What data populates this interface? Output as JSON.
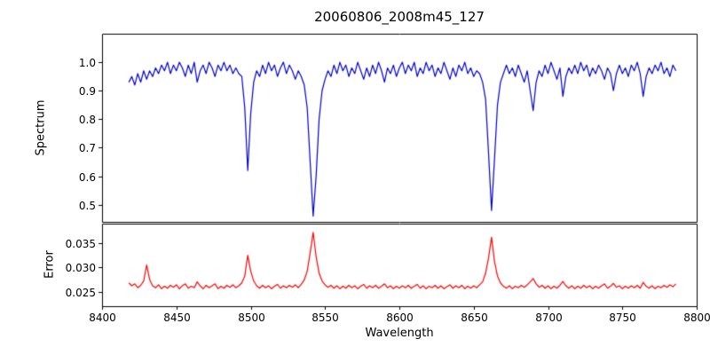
{
  "chart_data": [
    {
      "type": "line",
      "panel": "top",
      "title": "20060806_2008m45_127",
      "xlabel": "Wavelength",
      "ylabel": "Spectrum",
      "xlim": [
        8400,
        8800
      ],
      "ylim": [
        0.44,
        1.1
      ],
      "grid": false,
      "legend": "none",
      "line_color": "#0000cd",
      "x_ticks": [
        {
          "v": 8400,
          "label": "8400"
        },
        {
          "v": 8450,
          "label": "8450"
        },
        {
          "v": 8500,
          "label": "8500"
        },
        {
          "v": 8550,
          "label": "8550"
        },
        {
          "v": 8600,
          "label": "8600"
        },
        {
          "v": 8650,
          "label": "8650"
        },
        {
          "v": 8700,
          "label": "8700"
        },
        {
          "v": 8750,
          "label": "8750"
        },
        {
          "v": 8800,
          "label": "8800"
        }
      ],
      "y_ticks": [
        {
          "v": 0.5,
          "label": "0.5"
        },
        {
          "v": 0.6,
          "label": "0.6"
        },
        {
          "v": 0.7,
          "label": "0.7"
        },
        {
          "v": 0.8,
          "label": "0.8"
        },
        {
          "v": 0.9,
          "label": "0.9"
        },
        {
          "v": 1.0,
          "label": "1.0"
        }
      ],
      "x_start": 8418,
      "x_step": 2,
      "values": [
        0.93,
        0.95,
        0.92,
        0.96,
        0.93,
        0.97,
        0.94,
        0.97,
        0.95,
        0.98,
        0.96,
        0.99,
        0.97,
        1.0,
        0.96,
        0.99,
        0.97,
        1.0,
        0.98,
        0.95,
        0.99,
        0.96,
        1.0,
        0.93,
        0.97,
        0.99,
        0.96,
        1.0,
        0.98,
        0.95,
        0.99,
        0.97,
        1.0,
        0.97,
        0.99,
        0.96,
        0.98,
        0.96,
        0.95,
        0.84,
        0.62,
        0.82,
        0.93,
        0.97,
        0.95,
        0.99,
        0.96,
        1.0,
        0.97,
        0.99,
        0.95,
        0.98,
        1.0,
        0.96,
        0.99,
        0.97,
        0.94,
        0.97,
        0.95,
        0.92,
        0.84,
        0.65,
        0.46,
        0.6,
        0.8,
        0.9,
        0.94,
        0.97,
        0.95,
        0.99,
        0.96,
        1.0,
        0.97,
        0.99,
        0.95,
        0.98,
        0.96,
        1.0,
        0.97,
        0.94,
        0.98,
        0.95,
        0.99,
        0.96,
        1.0,
        0.97,
        0.93,
        0.98,
        0.96,
        0.99,
        0.95,
        0.98,
        1.0,
        0.96,
        0.99,
        0.97,
        1.0,
        0.95,
        0.98,
        0.96,
        1.0,
        0.97,
        0.99,
        0.95,
        0.98,
        0.96,
        1.0,
        0.97,
        0.94,
        0.98,
        0.95,
        0.99,
        0.97,
        1.0,
        0.96,
        0.98,
        0.95,
        0.97,
        0.96,
        0.93,
        0.87,
        0.68,
        0.48,
        0.66,
        0.85,
        0.93,
        0.96,
        0.99,
        0.96,
        0.98,
        0.95,
        0.99,
        0.96,
        0.93,
        0.97,
        0.9,
        0.83,
        0.93,
        0.97,
        0.95,
        0.99,
        0.96,
        1.0,
        0.97,
        0.94,
        0.98,
        0.88,
        0.95,
        0.98,
        0.96,
        0.99,
        0.96,
        1.0,
        0.97,
        0.99,
        0.95,
        0.98,
        0.96,
        0.99,
        0.97,
        0.94,
        0.98,
        0.96,
        0.9,
        0.96,
        0.99,
        0.96,
        0.98,
        0.95,
        0.99,
        0.97,
        1.0,
        0.96,
        0.88,
        0.95,
        0.98,
        0.96,
        0.99,
        0.97,
        1.0,
        0.96,
        0.98,
        0.95,
        0.99,
        0.97
      ]
    },
    {
      "type": "line",
      "panel": "bottom",
      "title": "",
      "xlabel": "Wavelength",
      "ylabel": "Error",
      "xlim": [
        8400,
        8800
      ],
      "ylim": [
        0.022,
        0.039
      ],
      "grid": false,
      "legend": "none",
      "line_color": "#ff0000",
      "x_ticks": [
        {
          "v": 8400,
          "label": "8400"
        },
        {
          "v": 8450,
          "label": "8450"
        },
        {
          "v": 8500,
          "label": "8500"
        },
        {
          "v": 8550,
          "label": "8550"
        },
        {
          "v": 8600,
          "label": "8600"
        },
        {
          "v": 8650,
          "label": "8650"
        },
        {
          "v": 8700,
          "label": "8700"
        },
        {
          "v": 8750,
          "label": "8750"
        },
        {
          "v": 8800,
          "label": "8800"
        }
      ],
      "y_ticks": [
        {
          "v": 0.025,
          "label": "0.025"
        },
        {
          "v": 0.03,
          "label": "0.030"
        },
        {
          "v": 0.035,
          "label": "0.035"
        }
      ],
      "x_start": 8418,
      "x_step": 2,
      "values": [
        0.0268,
        0.0262,
        0.0266,
        0.0258,
        0.0263,
        0.0272,
        0.0305,
        0.0275,
        0.0262,
        0.0258,
        0.0264,
        0.0256,
        0.0261,
        0.0257,
        0.0263,
        0.0259,
        0.0264,
        0.0256,
        0.0262,
        0.0266,
        0.0257,
        0.0261,
        0.0258,
        0.027,
        0.0262,
        0.0256,
        0.0263,
        0.0258,
        0.0262,
        0.0266,
        0.0256,
        0.0261,
        0.0257,
        0.0263,
        0.0259,
        0.0264,
        0.0258,
        0.0262,
        0.0268,
        0.0282,
        0.0325,
        0.0292,
        0.0272,
        0.0262,
        0.0257,
        0.0263,
        0.0258,
        0.0262,
        0.0256,
        0.0261,
        0.0265,
        0.0257,
        0.0262,
        0.0258,
        0.0263,
        0.0259,
        0.0264,
        0.0258,
        0.0265,
        0.0274,
        0.0292,
        0.033,
        0.0372,
        0.0322,
        0.0288,
        0.0272,
        0.0264,
        0.0259,
        0.0263,
        0.0257,
        0.0262,
        0.0256,
        0.0261,
        0.0257,
        0.0263,
        0.0258,
        0.0262,
        0.0256,
        0.0261,
        0.0265,
        0.0257,
        0.0262,
        0.0258,
        0.0263,
        0.0257,
        0.0261,
        0.0266,
        0.0258,
        0.0262,
        0.0256,
        0.0261,
        0.0257,
        0.0262,
        0.0258,
        0.0263,
        0.0257,
        0.0261,
        0.0265,
        0.0257,
        0.0262,
        0.0256,
        0.0261,
        0.0258,
        0.0263,
        0.0257,
        0.0262,
        0.0256,
        0.026,
        0.0264,
        0.0257,
        0.0262,
        0.0258,
        0.0263,
        0.0256,
        0.0261,
        0.0257,
        0.0262,
        0.0258,
        0.0264,
        0.027,
        0.0288,
        0.032,
        0.0362,
        0.0312,
        0.0282,
        0.0268,
        0.0261,
        0.0257,
        0.0262,
        0.0256,
        0.0261,
        0.0258,
        0.0263,
        0.0259,
        0.0264,
        0.027,
        0.0277,
        0.0266,
        0.0259,
        0.0263,
        0.0257,
        0.0262,
        0.0256,
        0.0261,
        0.0257,
        0.0263,
        0.0271,
        0.0262,
        0.0257,
        0.0262,
        0.0256,
        0.0261,
        0.0257,
        0.0263,
        0.0258,
        0.0262,
        0.0256,
        0.0261,
        0.0257,
        0.0262,
        0.0266,
        0.0257,
        0.0261,
        0.0267,
        0.0259,
        0.0262,
        0.0256,
        0.0261,
        0.0257,
        0.0262,
        0.0258,
        0.0263,
        0.0257,
        0.0269,
        0.0261,
        0.0257,
        0.0262,
        0.0256,
        0.0261,
        0.0258,
        0.0263,
        0.0259,
        0.0264,
        0.026,
        0.0266
      ]
    }
  ]
}
